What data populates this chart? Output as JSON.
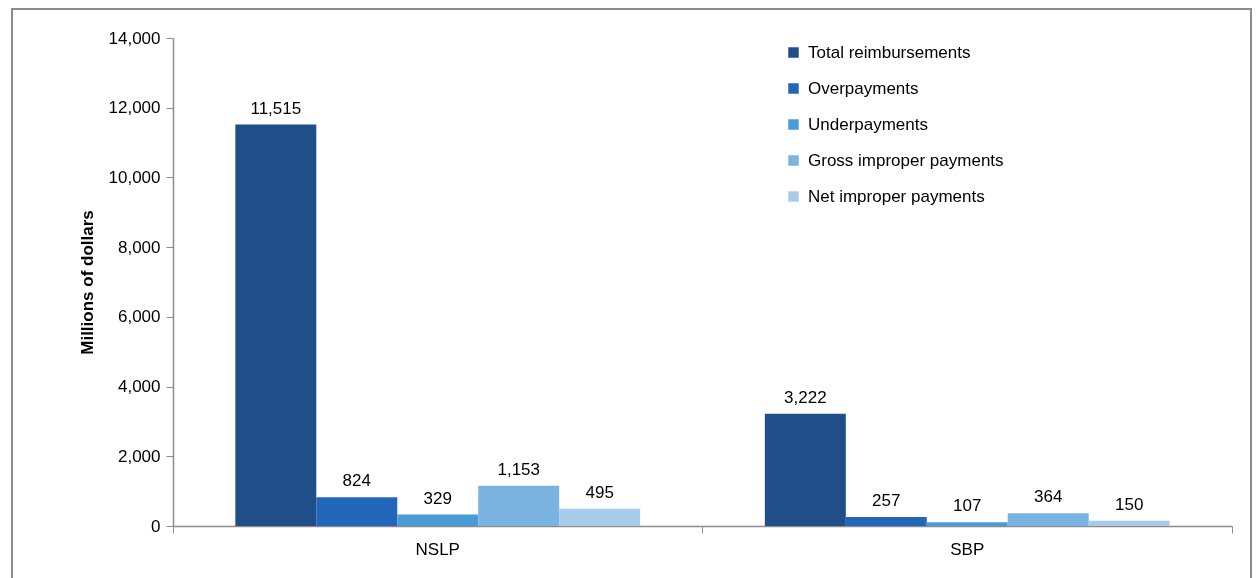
{
  "chart_data": {
    "type": "bar",
    "ylabel": "Millions of dollars",
    "categories": [
      "NSLP",
      "SBP"
    ],
    "series": [
      {
        "name": "Total reimbursements",
        "color": "#1f4e89",
        "values": [
          11515,
          3222
        ],
        "value_labels": [
          "11,515",
          "3,222"
        ]
      },
      {
        "name": "Overpayments",
        "color": "#2166b8",
        "values": [
          824,
          257
        ],
        "value_labels": [
          "824",
          "257"
        ]
      },
      {
        "name": "Underpayments",
        "color": "#4a9bd6",
        "values": [
          329,
          107
        ],
        "value_labels": [
          "329",
          "107"
        ]
      },
      {
        "name": "Gross improper payments",
        "color": "#7ab3e0",
        "values": [
          1153,
          364
        ],
        "value_labels": [
          "1,153",
          "364"
        ]
      },
      {
        "name": "Net improper payments",
        "color": "#a8cbea",
        "values": [
          495,
          150
        ],
        "value_labels": [
          "495",
          "150"
        ]
      }
    ],
    "ylim": [
      0,
      14000
    ],
    "yticks": [
      0,
      {
        "value": 2000,
        "label": "2,000"
      },
      {
        "value": 4000,
        "label": "4,000"
      },
      {
        "value": 6000,
        "label": "6,000"
      },
      {
        "value": 8000,
        "label": "8,000"
      },
      {
        "value": 10000,
        "label": "10,000"
      },
      {
        "value": 12000,
        "label": "12,000"
      },
      {
        "value": 14000,
        "label": "14,000"
      }
    ],
    "legend": "top right"
  }
}
